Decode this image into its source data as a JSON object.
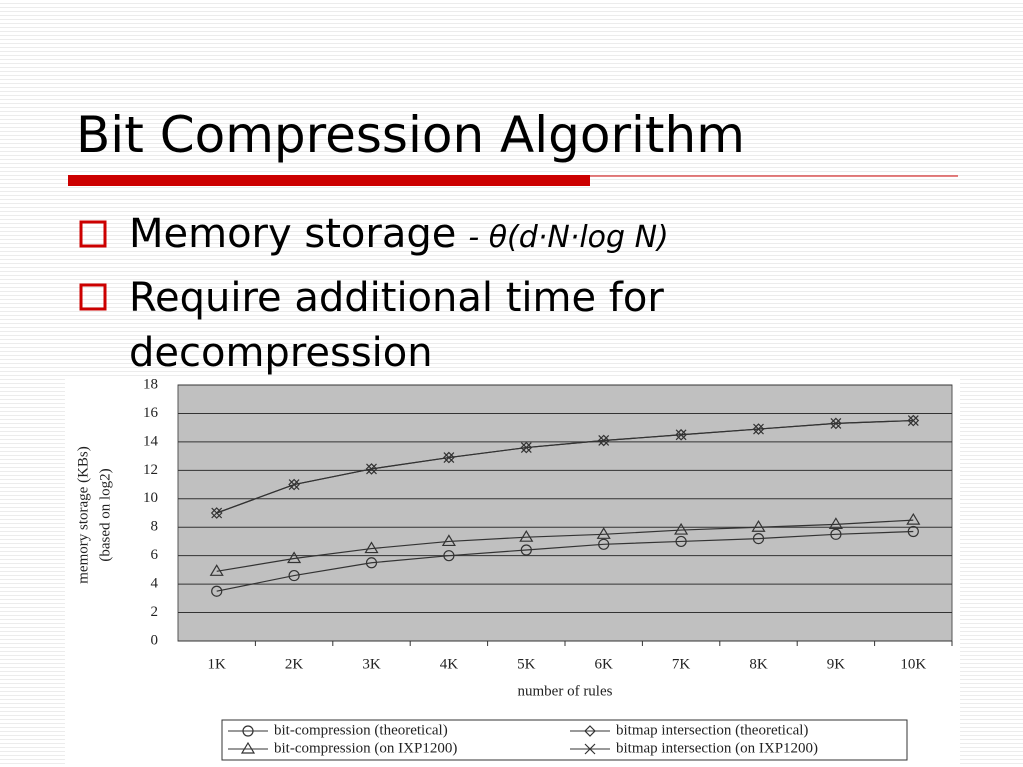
{
  "slide": {
    "title": "Bit Compression Algorithm",
    "bullets": [
      {
        "text": "Memory storage",
        "formula": "- θ(d·N·log N)"
      },
      {
        "text": "Require additional time for",
        "text2": "decompression"
      }
    ]
  },
  "chart_data": {
    "type": "line",
    "y_label": [
      "memory storage (KBs)",
      "(based on log2)"
    ],
    "x_label": "number of rules",
    "categories": [
      "1K",
      "2K",
      "3K",
      "4K",
      "5K",
      "6K",
      "7K",
      "8K",
      "9K",
      "10K"
    ],
    "series": [
      {
        "name": "bit-compression (theoretical)",
        "marker": "circle",
        "color": "#333333",
        "values": [
          3.5,
          4.6,
          5.5,
          6.0,
          6.4,
          6.8,
          7.0,
          7.2,
          7.5,
          7.7
        ]
      },
      {
        "name": "bitmap intersection (theoretical)",
        "marker": "diamond",
        "color": "#333333",
        "values": [
          9.0,
          11.0,
          12.1,
          12.9,
          13.6,
          14.1,
          14.5,
          14.9,
          15.3,
          15.5
        ]
      },
      {
        "name": "bit-compression (on IXP1200)",
        "marker": "triangle",
        "color": "#333333",
        "values": [
          4.9,
          5.8,
          6.5,
          7.0,
          7.3,
          7.5,
          7.8,
          8.0,
          8.2,
          8.5
        ]
      },
      {
        "name": "bitmap intersection (on IXP1200)",
        "marker": "x",
        "color": "#333333",
        "values": [
          9.0,
          11.0,
          12.1,
          12.9,
          13.6,
          14.1,
          14.5,
          14.9,
          15.3,
          15.5
        ]
      }
    ],
    "ylim": [
      0,
      18
    ],
    "yticks": [
      0,
      2,
      4,
      6,
      8,
      10,
      12,
      14,
      16,
      18
    ],
    "grid": true
  }
}
